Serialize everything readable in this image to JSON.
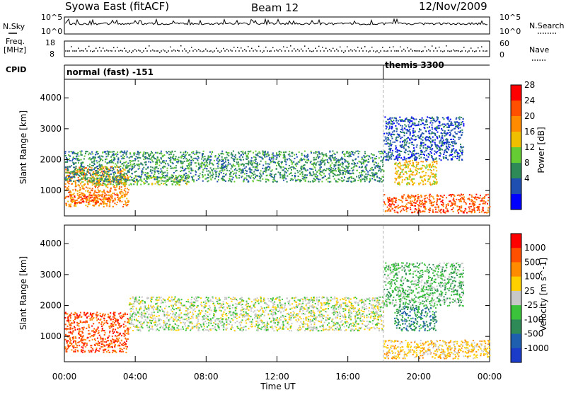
{
  "header": {
    "station": "Syowa East (fitACF)",
    "beam": "Beam 12",
    "date": "12/Nov/2009"
  },
  "strip_panels": {
    "nsky_label": "N.Sky",
    "nsearch_label": "N.Search",
    "nsky_ticks": [
      "10^5",
      "10^0"
    ],
    "nsearch_ticks": [
      "10^5",
      "10^0"
    ],
    "freq_label_1": "Freq.",
    "freq_label_2": "[MHz]",
    "freq_ticks": [
      "18",
      "8"
    ],
    "nave_label": "Nave",
    "nave_ticks": [
      "60",
      "0"
    ],
    "cpid_label": "CPID",
    "cpid_modes": [
      {
        "name": "normal (fast) -151",
        "start_ut": 0
      },
      {
        "name": "themis 3300",
        "start_ut": 18.0
      }
    ]
  },
  "chart_data": [
    {
      "type": "heatmap",
      "title": "",
      "ylabel": "Slant Range [km]",
      "yticks": [
        "1000",
        "2000",
        "3000",
        "4000"
      ],
      "ylim": [
        180,
        4600
      ],
      "xlim": [
        0,
        24
      ],
      "colorbar_label": "Power [dB]",
      "colorbar_ticks": [
        "4",
        "8",
        "12",
        "16",
        "20",
        "24",
        "28"
      ],
      "colorbar_range": [
        0,
        32
      ],
      "colors": [
        "#0000ff",
        "#1f4fb0",
        "#2e8b57",
        "#66cc33",
        "#f0c000",
        "#ff8c00",
        "#ff5000",
        "#ff0000"
      ],
      "regions": [
        {
          "x0": 0.0,
          "x1": 3.6,
          "y0": 500,
          "y1": 1800,
          "level": 5
        },
        {
          "x0": 0.2,
          "x1": 3.0,
          "y0": 600,
          "y1": 900,
          "level": 6
        },
        {
          "x0": 1.5,
          "x1": 7.0,
          "y0": 1200,
          "y1": 1500,
          "level": 3
        },
        {
          "x0": 0.0,
          "x1": 18.0,
          "y0": 1300,
          "y1": 2300,
          "level": 2
        },
        {
          "x0": 18.0,
          "x1": 24.0,
          "y0": 300,
          "y1": 900,
          "level": 6
        },
        {
          "x0": 18.6,
          "x1": 21.0,
          "y0": 1200,
          "y1": 2000,
          "level": 4
        },
        {
          "x0": 18.0,
          "x1": 22.5,
          "y0": 2000,
          "y1": 3400,
          "level": 1
        }
      ]
    },
    {
      "type": "heatmap",
      "title": "",
      "ylabel": "Slant Range [km]",
      "yticks": [
        "1000",
        "2000",
        "3000",
        "4000"
      ],
      "ylim": [
        180,
        4600
      ],
      "xlim": [
        0,
        24
      ],
      "xlabel": "Time UT",
      "xticks": [
        "00:00",
        "04:00",
        "08:00",
        "12:00",
        "16:00",
        "20:00",
        "00:00"
      ],
      "colorbar_label": "Velocity [m s^-1]",
      "colorbar_ticks": [
        "1000",
        "500",
        "100",
        "25",
        "-25",
        "-100",
        "-500",
        "-1000"
      ],
      "colors": [
        "#1a3cc8",
        "#1f5fb0",
        "#2e8b57",
        "#3cc33c",
        "#c8c8c8",
        "#ffd000",
        "#ff8c00",
        "#ff5000",
        "#ff0000"
      ],
      "regions": [
        {
          "x0": 0.0,
          "x1": 3.6,
          "y0": 500,
          "y1": 1800,
          "level": 7
        },
        {
          "x0": 3.6,
          "x1": 18.0,
          "y0": 1200,
          "y1": 2300,
          "level": 4
        },
        {
          "x0": 18.0,
          "x1": 24.0,
          "y0": 300,
          "y1": 900,
          "level": 5
        },
        {
          "x0": 18.6,
          "x1": 21.0,
          "y0": 1200,
          "y1": 2000,
          "level": 2
        },
        {
          "x0": 18.0,
          "x1": 22.5,
          "y0": 2000,
          "y1": 3400,
          "level": 3
        }
      ]
    }
  ]
}
